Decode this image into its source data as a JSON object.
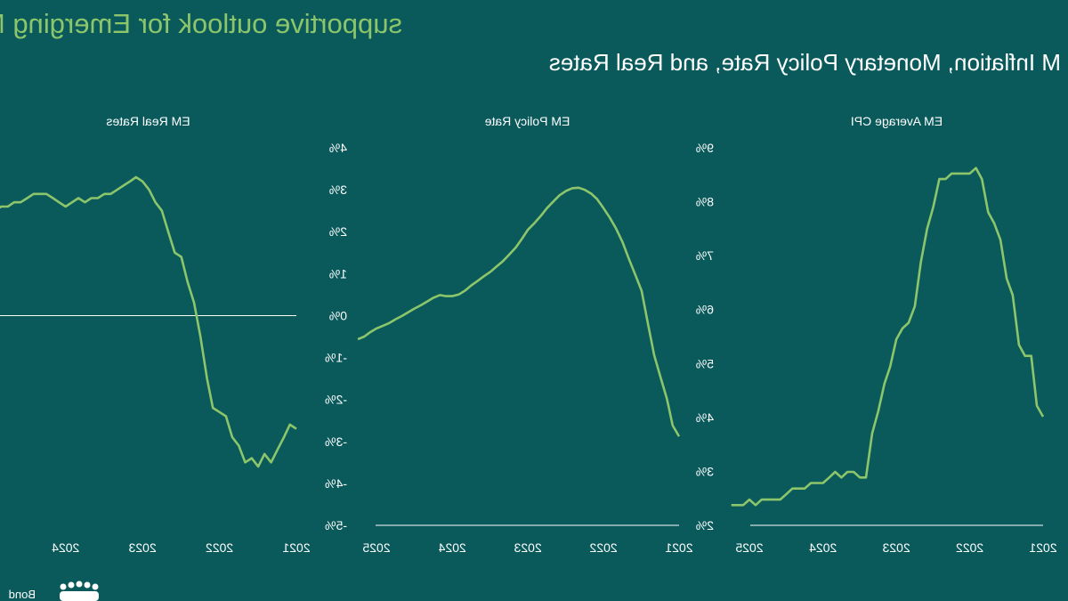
{
  "header": {
    "title": "supportive outlook for Emerging Markets",
    "subtitle": "M Inflation, Monetary Policy Rate, and Real Rates"
  },
  "logo": {
    "text": "Bond"
  },
  "colors": {
    "background": "#0a5a5c",
    "series": "#8cc56a",
    "axis": "#ffffff"
  },
  "chart_data": [
    {
      "type": "line",
      "title": "EM Average CPI",
      "x_ticks": [
        "2021",
        "2022",
        "2023",
        "2024",
        "2025"
      ],
      "y_ticks": [],
      "series": [
        {
          "x": [
            "2021-01",
            "2021-02",
            "2021-03",
            "2021-04",
            "2021-05",
            "2021-06",
            "2021-07",
            "2021-08",
            "2021-09",
            "2021-10",
            "2021-11",
            "2021-12",
            "2022-01",
            "2022-02",
            "2022-03",
            "2022-04",
            "2022-05",
            "2022-06",
            "2022-07",
            "2022-08",
            "2022-09",
            "2022-10",
            "2022-11",
            "2022-12",
            "2023-01",
            "2023-02",
            "2023-03",
            "2023-04",
            "2023-05",
            "2023-06",
            "2023-07",
            "2023-08",
            "2023-09",
            "2023-10",
            "2023-11",
            "2023-12",
            "2024-01",
            "2024-02",
            "2024-03",
            "2024-04",
            "2024-05",
            "2024-06",
            "2024-07",
            "2024-08",
            "2024-09",
            "2024-10",
            "2024-11",
            "2024-12",
            "2025-01",
            "2025-02",
            "2025-03",
            "2025-04"
          ],
          "values": [
            4.6,
            4.8,
            5.7,
            5.7,
            5.9,
            6.8,
            7.1,
            7.8,
            8.1,
            8.3,
            8.9,
            9.1,
            9.0,
            9.0,
            9.0,
            9.0,
            8.9,
            8.9,
            8.4,
            8.0,
            7.4,
            6.6,
            6.3,
            6.2,
            6.0,
            5.5,
            5.2,
            4.7,
            4.3,
            3.5,
            3.5,
            3.6,
            3.6,
            3.5,
            3.6,
            3.5,
            3.4,
            3.4,
            3.4,
            3.3,
            3.3,
            3.3,
            3.2,
            3.1,
            3.1,
            3.1,
            3.1,
            3.0,
            3.1,
            3.0,
            3.0,
            3.0
          ]
        }
      ]
    },
    {
      "type": "line",
      "title": "EM Policy Rate",
      "x_ticks": [
        "2021",
        "2022",
        "2023",
        "2024",
        "2025"
      ],
      "y_ticks": [
        "2%",
        "3%",
        "4%",
        "5%",
        "6%",
        "7%",
        "8%",
        "9%"
      ],
      "ylim": [
        2,
        9
      ],
      "series": [
        {
          "x": [
            "2021-01",
            "2021-02",
            "2021-03",
            "2021-04",
            "2021-05",
            "2021-06",
            "2021-07",
            "2021-08",
            "2021-09",
            "2021-10",
            "2021-11",
            "2021-12",
            "2022-01",
            "2022-02",
            "2022-03",
            "2022-04",
            "2022-05",
            "2022-06",
            "2022-07",
            "2022-08",
            "2022-09",
            "2022-10",
            "2022-11",
            "2022-12",
            "2023-01",
            "2023-02",
            "2023-03",
            "2023-04",
            "2023-05",
            "2023-06",
            "2023-07",
            "2023-08",
            "2023-09",
            "2023-10",
            "2023-11",
            "2023-12",
            "2024-01",
            "2024-02",
            "2024-03",
            "2024-04",
            "2024-05",
            "2024-06",
            "2024-07",
            "2024-08",
            "2024-09",
            "2024-10",
            "2024-11",
            "2024-12",
            "2025-01",
            "2025-02",
            "2025-03",
            "2025-04"
          ],
          "values": [
            3.65,
            3.85,
            4.35,
            4.75,
            5.15,
            5.75,
            6.35,
            6.65,
            6.95,
            7.25,
            7.5,
            7.7,
            7.88,
            8.05,
            8.15,
            8.22,
            8.26,
            8.25,
            8.2,
            8.12,
            8.0,
            7.88,
            7.73,
            7.6,
            7.48,
            7.3,
            7.15,
            7.02,
            6.9,
            6.8,
            6.7,
            6.62,
            6.53,
            6.45,
            6.35,
            6.28,
            6.25,
            6.25,
            6.27,
            6.22,
            6.15,
            6.08,
            6.02,
            5.95,
            5.88,
            5.82,
            5.75,
            5.7,
            5.65,
            5.58,
            5.5,
            5.45
          ]
        }
      ]
    },
    {
      "type": "line",
      "title": "EM Real Rates",
      "x_ticks": [
        "2021",
        "2022",
        "2023",
        "2024"
      ],
      "y_ticks": [
        "-5%",
        "-4%",
        "-3%",
        "-2%",
        "-1%",
        "0%",
        "1%",
        "2%",
        "3%",
        "4%"
      ],
      "ylim": [
        -5,
        4
      ],
      "series": [
        {
          "x": [
            "2021-01",
            "2021-02",
            "2021-03",
            "2021-04",
            "2021-05",
            "2021-06",
            "2021-07",
            "2021-08",
            "2021-09",
            "2021-10",
            "2021-11",
            "2021-12",
            "2022-01",
            "2022-02",
            "2022-03",
            "2022-04",
            "2022-05",
            "2022-06",
            "2022-07",
            "2022-08",
            "2022-09",
            "2022-10",
            "2022-11",
            "2022-12",
            "2023-01",
            "2023-02",
            "2023-03",
            "2023-04",
            "2023-05",
            "2023-06",
            "2023-07",
            "2023-08",
            "2023-09",
            "2023-10",
            "2023-11",
            "2023-12",
            "2024-01",
            "2024-02",
            "2024-03",
            "2024-04",
            "2024-05",
            "2024-06",
            "2024-07",
            "2024-08",
            "2024-09",
            "2024-10",
            "2024-11",
            "2024-12",
            "2025-01",
            "2025-02",
            "2025-03",
            "2025-04"
          ],
          "values": [
            -2.7,
            -2.6,
            -2.9,
            -3.2,
            -3.5,
            -3.3,
            -3.6,
            -3.4,
            -3.5,
            -3.1,
            -2.9,
            -2.4,
            -2.3,
            -2.2,
            -1.5,
            -0.5,
            0.3,
            0.8,
            1.4,
            1.5,
            2.0,
            2.5,
            2.7,
            3.0,
            3.2,
            3.3,
            3.2,
            3.1,
            3.0,
            2.9,
            2.9,
            2.8,
            2.8,
            2.7,
            2.8,
            2.7,
            2.6,
            2.7,
            2.8,
            2.9,
            2.9,
            2.9,
            2.8,
            2.7,
            2.7,
            2.6,
            2.6,
            2.5,
            2.6,
            2.6,
            2.7,
            2.7
          ]
        }
      ]
    }
  ]
}
